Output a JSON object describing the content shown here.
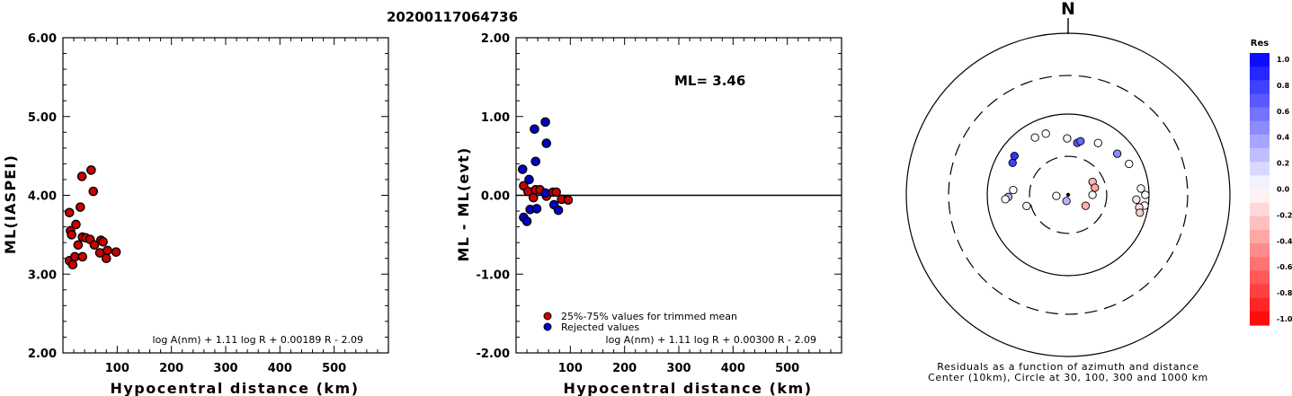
{
  "page_title": "20200117064736",
  "colors": {
    "red": "#cc0000",
    "blue": "#0000cc",
    "axis": "#000000"
  },
  "chart_data": [
    {
      "type": "scatter",
      "title": "",
      "xlabel": "Hypocentral distance (km)",
      "ylabel": "ML(IASPEI)",
      "xlim": [
        0,
        600
      ],
      "ylim": [
        2.0,
        6.0
      ],
      "x_ticks": [
        "100",
        "200",
        "300",
        "400",
        "500"
      ],
      "y_ticks": [
        "2.00",
        "3.00",
        "4.00",
        "5.00",
        "6.00"
      ],
      "formula": "log A(nm) + 1.11 log R + 0.00189 R - 2.09",
      "series": [
        {
          "color": "red",
          "points": [
            [
              12,
              3.78
            ],
            [
              14,
              3.55
            ],
            [
              16,
              3.5
            ],
            [
              12,
              3.17
            ],
            [
              18,
              3.12
            ],
            [
              24,
              3.63
            ],
            [
              22,
              3.22
            ],
            [
              28,
              3.37
            ],
            [
              32,
              3.85
            ],
            [
              35,
              4.24
            ],
            [
              36,
              3.47
            ],
            [
              42,
              3.46
            ],
            [
              36,
              3.22
            ],
            [
              52,
              4.32
            ],
            [
              56,
              4.05
            ],
            [
              50,
              3.44
            ],
            [
              58,
              3.37
            ],
            [
              70,
              3.43
            ],
            [
              74,
              3.41
            ],
            [
              68,
              3.27
            ],
            [
              82,
              3.3
            ],
            [
              80,
              3.2
            ],
            [
              98,
              3.28
            ]
          ]
        }
      ]
    },
    {
      "type": "scatter",
      "title": "",
      "xlabel": "Hypocentral distance (km)",
      "ylabel": "ML - ML(evt)",
      "xlim": [
        0,
        600
      ],
      "ylim": [
        -2.0,
        2.0
      ],
      "x_ticks": [
        "100",
        "200",
        "300",
        "400",
        "500"
      ],
      "y_ticks": [
        "-2.00",
        "-1.00",
        "0.00",
        "1.00",
        "2.00"
      ],
      "ml_label": "ML= 3.46",
      "formula": "log A(nm) + 1.11 log R + 0.00300 R - 2.09",
      "legend": [
        {
          "label": "25%-75% values for trimmed mean",
          "color": "red"
        },
        {
          "label": "Rejected values",
          "color": "blue"
        }
      ],
      "series": [
        {
          "name": "25%-75% values for trimmed mean",
          "color": "red",
          "points": [
            [
              14,
              0.12
            ],
            [
              22,
              0.05
            ],
            [
              32,
              -0.03
            ],
            [
              36,
              0.07
            ],
            [
              44,
              0.07
            ],
            [
              56,
              -0.01
            ],
            [
              68,
              0.04
            ],
            [
              74,
              0.04
            ],
            [
              84,
              -0.05
            ],
            [
              96,
              -0.06
            ]
          ]
        },
        {
          "name": "Rejected values",
          "color": "blue",
          "points": [
            [
              12,
              0.33
            ],
            [
              14,
              -0.28
            ],
            [
              20,
              -0.33
            ],
            [
              24,
              0.2
            ],
            [
              26,
              -0.18
            ],
            [
              34,
              0.84
            ],
            [
              36,
              0.43
            ],
            [
              38,
              -0.17
            ],
            [
              54,
              0.93
            ],
            [
              56,
              0.66
            ],
            [
              54,
              0.03
            ],
            [
              70,
              -0.12
            ],
            [
              78,
              -0.19
            ]
          ]
        }
      ]
    },
    {
      "type": "scatter",
      "subtype": "polar",
      "north_label": "N",
      "caption_1": "Residuals as a function of azimuth and distance",
      "caption_2": "Center (10km), Circle at 30, 100, 300 and 1000 km",
      "colorbar": {
        "title": "Res",
        "ticks": [
          "1.0",
          "0.8",
          "0.6",
          "0.4",
          "0.2",
          "0.0",
          "-0.2",
          "-0.4",
          "-0.6",
          "-0.8",
          "-1.0"
        ],
        "range": [
          -1.0,
          1.0
        ],
        "max_color": "#0000ff",
        "zero_color": "#ffffff",
        "min_color": "#ff0000"
      },
      "points": [
        {
          "azimuth": 359,
          "distance_km": 50,
          "res": 0.05
        },
        {
          "azimuth": 10,
          "distance_km": 45,
          "res": 0.65
        },
        {
          "azimuth": 13,
          "distance_km": 48,
          "res": 0.6
        },
        {
          "azimuth": 30,
          "distance_km": 55,
          "res": 0.0
        },
        {
          "azimuth": 50,
          "distance_km": 62,
          "res": 0.45
        },
        {
          "azimuth": 63,
          "distance_km": 70,
          "res": 0.0
        },
        {
          "azimuth": 85,
          "distance_km": 80,
          "res": -0.05
        },
        {
          "azimuth": 90,
          "distance_km": 90,
          "res": 0.0
        },
        {
          "azimuth": 94,
          "distance_km": 70,
          "res": -0.1
        },
        {
          "azimuth": 98,
          "distance_km": 90,
          "res": 0.0
        },
        {
          "azimuth": 100,
          "distance_km": 78,
          "res": -0.12
        },
        {
          "azimuth": 104,
          "distance_km": 82,
          "res": -0.2
        },
        {
          "azimuth": 62,
          "distance_km": 22,
          "res": -0.3
        },
        {
          "azimuth": 75,
          "distance_km": 22,
          "res": -0.35
        },
        {
          "azimuth": 90,
          "distance_km": 20,
          "res": 0.0
        },
        {
          "azimuth": 122,
          "distance_km": 18,
          "res": -0.3
        },
        {
          "azimuth": 195,
          "distance_km": 12,
          "res": 0.3
        },
        {
          "azimuth": 265,
          "distance_km": 14,
          "res": 0.0
        },
        {
          "azimuth": 255,
          "distance_km": 34,
          "res": 0.05
        },
        {
          "azimuth": 275,
          "distance_km": 48,
          "res": 0.0
        },
        {
          "azimuth": 268,
          "distance_km": 55,
          "res": 0.3
        },
        {
          "azimuth": 266,
          "distance_km": 60,
          "res": 0.0
        },
        {
          "azimuth": 300,
          "distance_km": 62,
          "res": 0.75
        },
        {
          "azimuth": 306,
          "distance_km": 66,
          "res": 0.8
        },
        {
          "azimuth": 330,
          "distance_km": 66,
          "res": 0.0
        },
        {
          "azimuth": 340,
          "distance_km": 64,
          "res": 0.0
        }
      ]
    }
  ]
}
